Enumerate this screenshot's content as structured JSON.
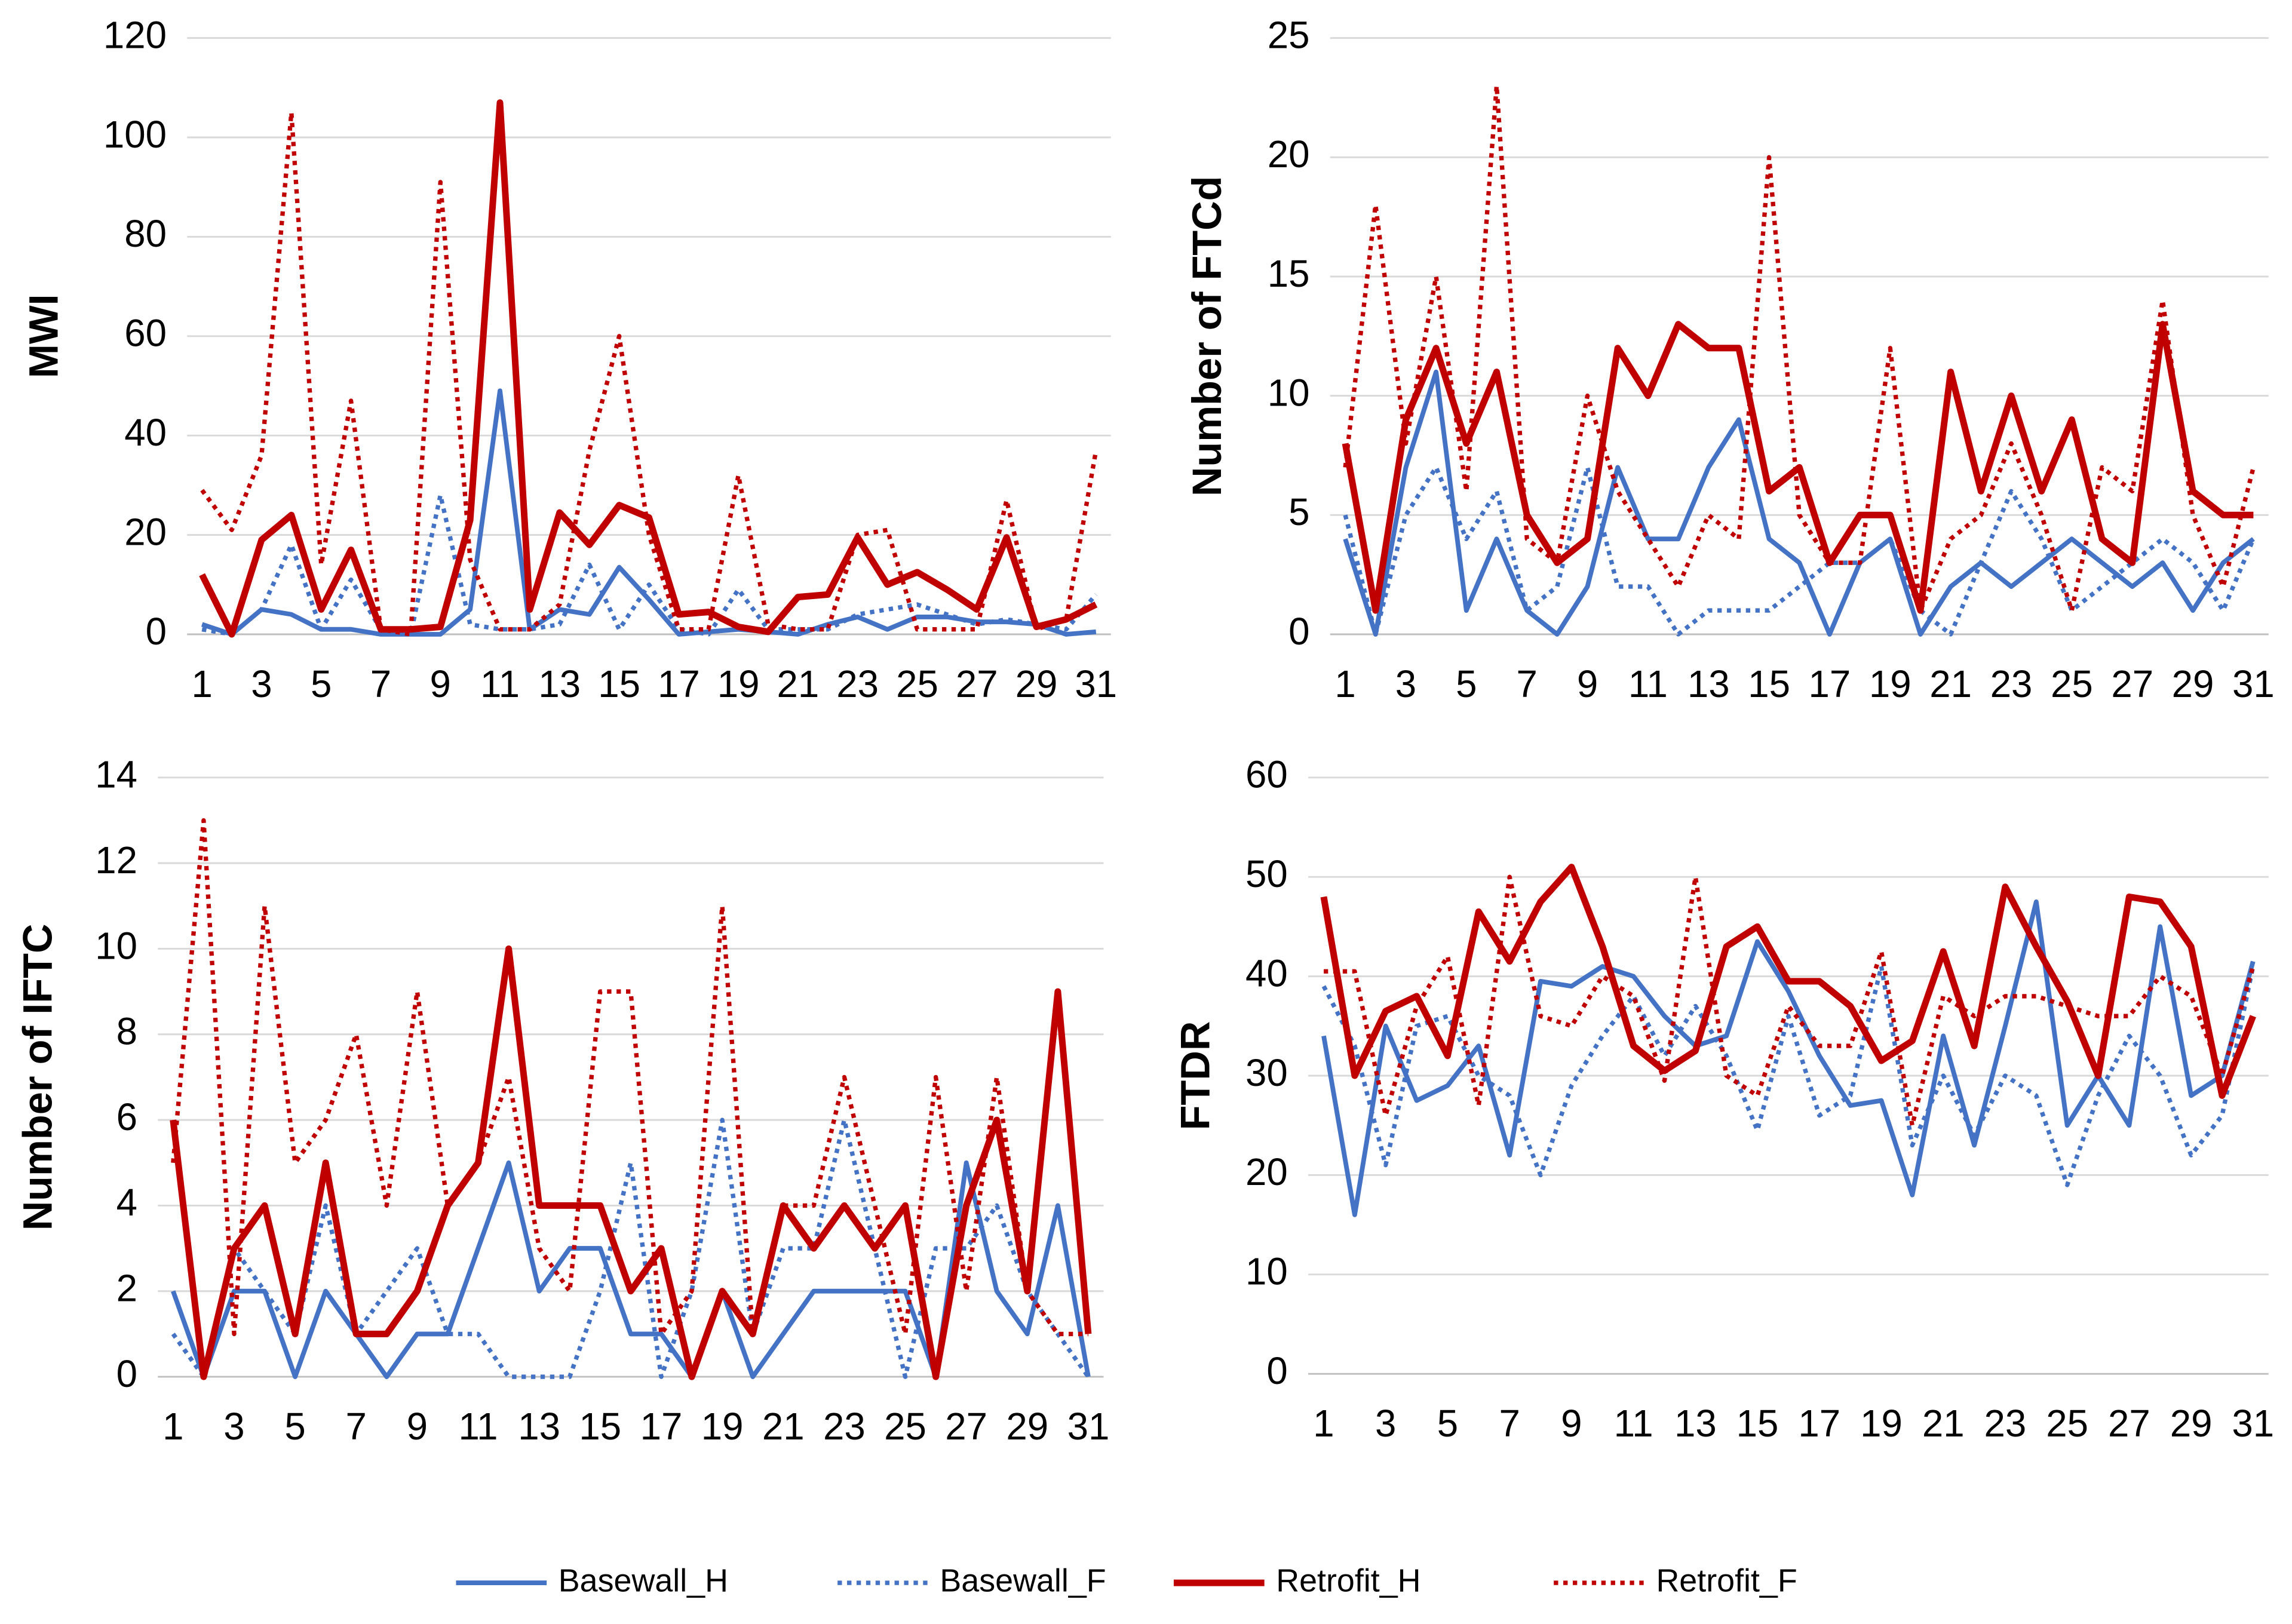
{
  "chart_data": [
    {
      "type": "line",
      "ylabel": "MWI",
      "grid": true,
      "ylim": [
        0,
        120
      ],
      "yticks": [
        0,
        20,
        40,
        60,
        80,
        100,
        120
      ],
      "categories": [
        1,
        null,
        3,
        null,
        5,
        null,
        7,
        null,
        9,
        null,
        11,
        null,
        13,
        null,
        15,
        null,
        17,
        null,
        19,
        null,
        21,
        null,
        23,
        null,
        25,
        null,
        27,
        null,
        29,
        null,
        31
      ],
      "series": [
        {
          "name": "Basewall_H",
          "color": "#4472c4",
          "style": "solid",
          "values": [
            2,
            0,
            5,
            4,
            1,
            1,
            0,
            0,
            0,
            5,
            49,
            1,
            5,
            4,
            13.5,
            7,
            0,
            0.5,
            1,
            0.5,
            0,
            2,
            3.5,
            1,
            3.5,
            3.5,
            2.5,
            2.5,
            2,
            0,
            0.5
          ]
        },
        {
          "name": "Basewall_F",
          "color": "#4472c4",
          "style": "dotted",
          "values": [
            1,
            0,
            5,
            18,
            1,
            11,
            1,
            0,
            28,
            2,
            1,
            1,
            2,
            14,
            1,
            10,
            1,
            0,
            9,
            1,
            1,
            1,
            4,
            5,
            6,
            4,
            2,
            3,
            2,
            1,
            8
          ]
        },
        {
          "name": "Retrofit_H",
          "color": "#c00000",
          "style": "solid",
          "values": [
            12,
            0,
            19,
            24,
            5,
            17,
            1,
            1,
            1.5,
            23,
            107,
            5,
            24.5,
            18,
            26,
            23.5,
            4,
            4.5,
            1.5,
            0.5,
            7.5,
            8,
            19.5,
            10,
            12.5,
            9,
            5,
            19.5,
            1.5,
            3,
            6
          ]
        },
        {
          "name": "Retrofit_F",
          "color": "#c00000",
          "style": "dotted",
          "values": [
            29,
            21,
            36,
            105,
            14,
            47,
            1,
            0,
            91,
            15,
            1,
            1,
            6,
            37,
            60,
            20,
            1,
            1,
            32,
            2,
            1,
            1,
            20,
            21,
            1,
            1,
            1,
            27,
            1,
            3,
            37
          ]
        }
      ]
    },
    {
      "type": "line",
      "ylabel": "Number of FTCd",
      "grid": true,
      "ylim": [
        0,
        25
      ],
      "yticks": [
        0,
        5,
        10,
        15,
        20,
        25
      ],
      "categories": [
        1,
        null,
        3,
        null,
        5,
        null,
        7,
        null,
        9,
        null,
        11,
        null,
        13,
        null,
        15,
        null,
        17,
        null,
        19,
        null,
        21,
        null,
        23,
        null,
        25,
        null,
        27,
        null,
        29,
        null,
        31
      ],
      "series": [
        {
          "color": "#4472c4",
          "style": "solid",
          "values": [
            4,
            0,
            7,
            11,
            1,
            4,
            1,
            0,
            2,
            7,
            4,
            4,
            7,
            9,
            4,
            3,
            0,
            3,
            4,
            0,
            2,
            3,
            2,
            3,
            4,
            3,
            2,
            3,
            1,
            3,
            4
          ]
        },
        {
          "color": "#4472c4",
          "style": "dotted",
          "values": [
            5,
            0,
            5,
            7,
            4,
            6,
            1,
            2,
            7,
            2,
            2,
            0,
            1,
            1,
            1,
            2,
            3,
            3,
            4,
            1,
            0,
            3,
            6,
            4,
            1,
            2,
            3,
            4,
            3,
            1,
            4
          ]
        },
        {
          "color": "#c00000",
          "style": "solid",
          "values": [
            8,
            1,
            9,
            12,
            8,
            11,
            5,
            3,
            4,
            12,
            10,
            13,
            12,
            12,
            6,
            7,
            3,
            5,
            5,
            1,
            11,
            6,
            10,
            6,
            9,
            4,
            3,
            13,
            6,
            5,
            5
          ]
        },
        {
          "color": "#c00000",
          "style": "dotted",
          "values": [
            7,
            18,
            8,
            15,
            6,
            23,
            4,
            3,
            10,
            6,
            4,
            2,
            5,
            4,
            20,
            5,
            3,
            3,
            12,
            1,
            4,
            5,
            8,
            5,
            1,
            7,
            6,
            14,
            5,
            2,
            7
          ]
        }
      ]
    },
    {
      "type": "line",
      "ylabel": "Number of IFTC",
      "grid": true,
      "ylim": [
        0,
        14
      ],
      "yticks": [
        0,
        2,
        4,
        6,
        8,
        10,
        12,
        14
      ],
      "categories": [
        1,
        null,
        3,
        null,
        5,
        null,
        7,
        null,
        9,
        null,
        11,
        null,
        13,
        null,
        15,
        null,
        17,
        null,
        19,
        null,
        21,
        null,
        23,
        null,
        25,
        null,
        27,
        null,
        29,
        null,
        31
      ],
      "series": [
        {
          "color": "#4472c4",
          "style": "solid",
          "values": [
            2,
            0,
            2,
            2,
            0,
            2,
            1,
            0,
            1,
            1,
            3,
            5,
            2,
            3,
            3,
            1,
            1,
            0,
            2,
            0,
            1,
            2,
            2,
            2,
            2,
            0,
            5,
            2,
            1,
            4,
            0
          ]
        },
        {
          "color": "#4472c4",
          "style": "dotted",
          "values": [
            1,
            0,
            3,
            2,
            1,
            4,
            1,
            2,
            3,
            1,
            1,
            0,
            0,
            0,
            2,
            5,
            0,
            2,
            6,
            1,
            3,
            3,
            6,
            3,
            0,
            3,
            3,
            4,
            2,
            1,
            0
          ]
        },
        {
          "color": "#c00000",
          "style": "solid",
          "values": [
            6,
            0,
            3,
            4,
            1,
            5,
            1,
            1,
            2,
            4,
            5,
            10,
            4,
            4,
            4,
            2,
            3,
            0,
            2,
            1,
            4,
            3,
            4,
            3,
            4,
            0,
            4,
            6,
            2,
            9,
            1
          ]
        },
        {
          "color": "#c00000",
          "style": "dotted",
          "values": [
            5,
            13,
            1,
            11,
            5,
            6,
            8,
            4,
            9,
            4,
            5,
            7,
            3,
            2,
            9,
            9,
            1,
            2,
            11,
            1,
            4,
            4,
            7,
            4,
            1,
            7,
            2,
            7,
            2,
            1,
            1
          ]
        }
      ]
    },
    {
      "type": "line",
      "ylabel": "FTDR",
      "grid": true,
      "ylim": [
        0,
        60
      ],
      "yticks": [
        0,
        10,
        20,
        30,
        40,
        50,
        60
      ],
      "categories": [
        1,
        null,
        3,
        null,
        5,
        null,
        7,
        null,
        9,
        null,
        11,
        null,
        13,
        null,
        15,
        null,
        17,
        null,
        19,
        null,
        21,
        null,
        23,
        null,
        25,
        null,
        27,
        null,
        29,
        null,
        31
      ],
      "series": [
        {
          "color": "#4472c4",
          "style": "solid",
          "values": [
            34,
            16,
            35,
            27.5,
            29,
            33,
            22,
            39.5,
            39,
            41,
            40,
            36,
            33,
            34,
            43.5,
            38.5,
            32,
            27,
            27.5,
            18,
            34,
            23,
            35,
            47.5,
            25,
            30,
            25,
            45,
            28,
            30,
            41.5
          ]
        },
        {
          "color": "#4472c4",
          "style": "dotted",
          "values": [
            39,
            33,
            21,
            35,
            36,
            30,
            28,
            20,
            29,
            34,
            38,
            32,
            37,
            32,
            24.5,
            36,
            26,
            28,
            41,
            23,
            30,
            24,
            30,
            28,
            19,
            28,
            34,
            30,
            22,
            26,
            41
          ]
        },
        {
          "color": "#c00000",
          "style": "solid",
          "values": [
            48,
            30,
            36.5,
            38,
            32,
            46.5,
            41.5,
            47.5,
            51,
            43,
            33,
            30.5,
            32.5,
            43,
            45,
            39.5,
            39.5,
            37,
            31.5,
            33.5,
            42.5,
            33,
            49,
            43,
            37.5,
            30,
            48,
            47.5,
            43,
            28,
            36
          ]
        },
        {
          "color": "#c00000",
          "style": "dotted",
          "values": [
            40.5,
            40.5,
            26,
            37,
            42,
            27,
            50,
            36,
            35,
            40,
            38,
            29.5,
            50,
            30,
            28,
            37,
            33,
            33,
            42.5,
            25,
            38,
            36,
            38,
            38,
            37,
            36,
            36,
            40,
            38,
            30,
            41
          ]
        }
      ]
    }
  ]
}
